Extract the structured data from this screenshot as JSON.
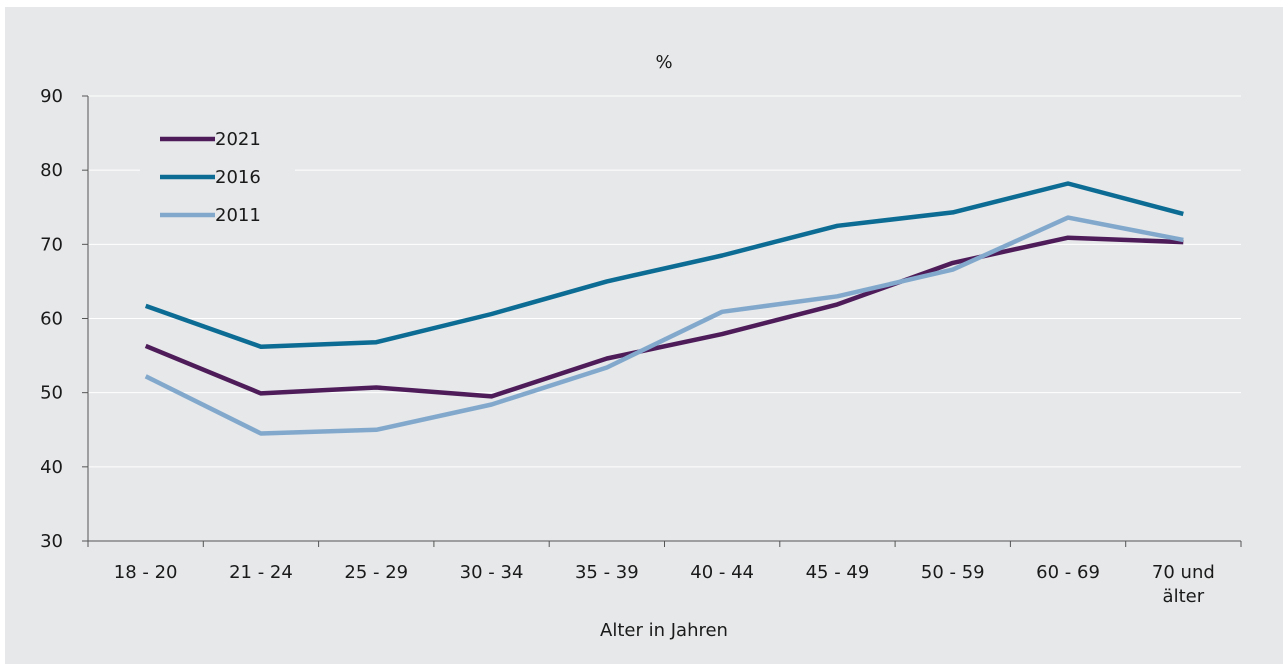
{
  "chart_data": {
    "type": "line",
    "title": "",
    "unit_label": "%",
    "xlabel": "Alter in Jahren",
    "ylabel": "",
    "ylim": [
      30,
      90
    ],
    "yticks": [
      30,
      40,
      50,
      60,
      70,
      80,
      90
    ],
    "grid": true,
    "legend_position": "top-left",
    "categories": [
      "18 - 20",
      "21 - 24",
      "25 - 29",
      "30 - 34",
      "35 - 39",
      "40 - 44",
      "45 - 49",
      "50 - 59",
      "60 - 69",
      "70 und älter"
    ],
    "series": [
      {
        "name": "2021",
        "color": "#4f1c5a",
        "values": [
          56.3,
          49.9,
          50.7,
          49.5,
          54.6,
          57.9,
          61.9,
          67.5,
          70.9,
          70.3
        ]
      },
      {
        "name": "2016",
        "color": "#0d6c93",
        "values": [
          61.7,
          56.2,
          56.8,
          60.6,
          65.0,
          68.5,
          72.5,
          74.3,
          78.2,
          74.1
        ]
      },
      {
        "name": "2011",
        "color": "#82a9cc",
        "values": [
          52.2,
          44.5,
          45.0,
          48.4,
          53.4,
          60.9,
          63.0,
          66.6,
          73.6,
          70.6
        ]
      }
    ]
  }
}
